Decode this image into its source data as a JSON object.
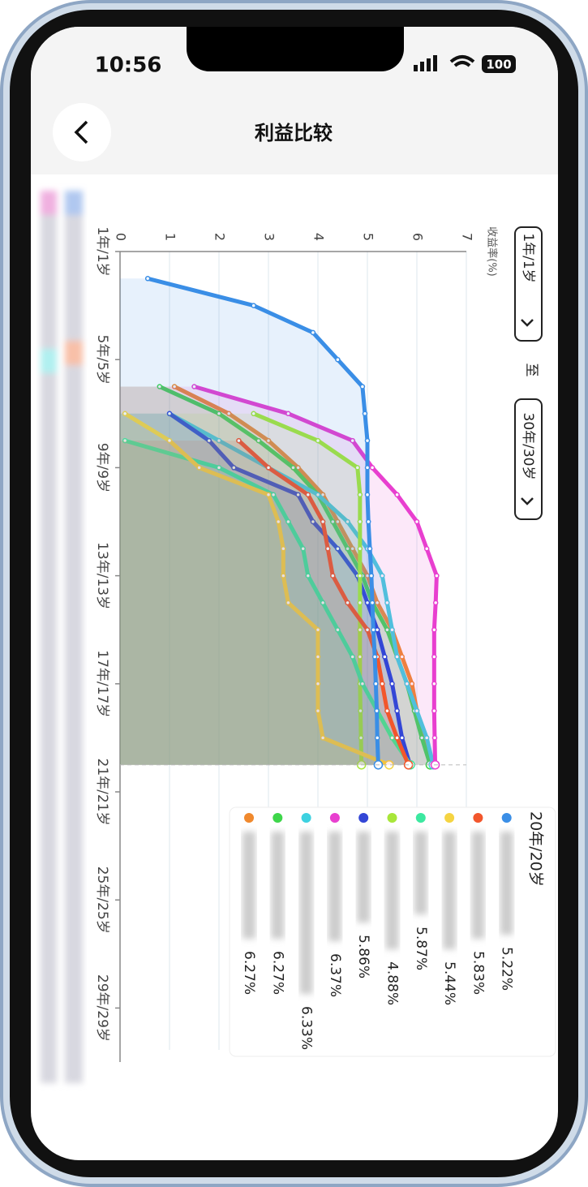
{
  "status_bar": {
    "time": "10:56",
    "battery": "100"
  },
  "header": {
    "title": "利益比较"
  },
  "range_selector": {
    "from": "1年/1岁",
    "separator": "至",
    "to": "30年/30岁"
  },
  "chart_data": {
    "type": "line",
    "orientation": "rotated",
    "y_label": "收益率(%)",
    "x": [
      1,
      2,
      3,
      4,
      5,
      6,
      7,
      8,
      9,
      10,
      11,
      12,
      13,
      14,
      15,
      16,
      17,
      18,
      19,
      20
    ],
    "xlim": [
      1,
      31
    ],
    "xticks": [
      {
        "value": 1,
        "label": "1年/1岁"
      },
      {
        "value": 5,
        "label": "5年/5岁"
      },
      {
        "value": 9,
        "label": "9年/9岁"
      },
      {
        "value": 13,
        "label": "13年/13岁"
      },
      {
        "value": 17,
        "label": "17年/17岁"
      },
      {
        "value": 21,
        "label": "21年/21岁"
      },
      {
        "value": 25,
        "label": "25年/25岁"
      },
      {
        "value": 29,
        "label": "29年/29岁"
      }
    ],
    "ylim": [
      0,
      7
    ],
    "yticks": [
      0,
      1,
      2,
      3,
      4,
      5,
      6,
      7
    ],
    "grid": true,
    "area": true,
    "series": [
      {
        "color": "#f0892d",
        "values": [
          null,
          null,
          null,
          null,
          null,
          1.1,
          2.2,
          3.0,
          3.6,
          4.1,
          4.4,
          4.7,
          5.0,
          5.2,
          5.5,
          5.7,
          5.9,
          6.0,
          6.15,
          6.27
        ]
      },
      {
        "color": "#3ed64a",
        "values": [
          null,
          null,
          null,
          null,
          null,
          0.8,
          2.0,
          2.8,
          3.5,
          4.0,
          4.3,
          4.6,
          4.9,
          5.1,
          5.4,
          5.6,
          5.8,
          5.95,
          6.1,
          6.27
        ]
      },
      {
        "color": "#3dd1e0",
        "values": [
          null,
          null,
          null,
          null,
          null,
          null,
          1.0,
          2.0,
          3.0,
          4.0,
          4.6,
          5.0,
          5.3,
          5.4,
          5.5,
          5.6,
          5.8,
          6.0,
          6.2,
          6.33
        ]
      },
      {
        "color": "#e83fcf",
        "values": [
          null,
          null,
          null,
          null,
          null,
          1.5,
          3.4,
          4.7,
          5.1,
          5.6,
          6.0,
          6.2,
          6.4,
          6.38,
          6.35,
          6.35,
          6.35,
          6.35,
          6.36,
          6.37
        ]
      },
      {
        "color": "#3346d6",
        "values": [
          null,
          null,
          null,
          null,
          null,
          null,
          1.0,
          1.8,
          2.3,
          3.6,
          3.9,
          4.4,
          4.8,
          5.0,
          5.2,
          5.35,
          5.5,
          5.6,
          5.7,
          5.86
        ]
      },
      {
        "color": "#a8e63a",
        "values": [
          null,
          null,
          null,
          null,
          null,
          null,
          2.7,
          4.0,
          4.8,
          4.85,
          4.85,
          4.85,
          4.85,
          4.85,
          4.85,
          4.85,
          4.85,
          4.86,
          4.87,
          4.88
        ]
      },
      {
        "color": "#3ce8a0",
        "values": [
          null,
          null,
          null,
          null,
          null,
          null,
          null,
          0.1,
          2.0,
          3.1,
          3.4,
          3.7,
          3.8,
          4.1,
          4.4,
          4.7,
          4.9,
          5.2,
          5.5,
          5.87
        ]
      },
      {
        "color": "#f5d442",
        "values": [
          null,
          null,
          null,
          null,
          null,
          null,
          0.1,
          1.0,
          1.6,
          3.0,
          3.2,
          3.3,
          3.3,
          3.4,
          4.0,
          4.0,
          4.0,
          4.0,
          4.1,
          5.44
        ]
      },
      {
        "color": "#f2562c",
        "values": [
          null,
          null,
          null,
          null,
          null,
          null,
          null,
          2.4,
          3.0,
          3.8,
          4.1,
          4.2,
          4.3,
          4.6,
          5.0,
          5.2,
          5.3,
          5.4,
          5.6,
          5.83
        ]
      },
      {
        "color": "#3a8ee6",
        "values": [
          null,
          0.56,
          2.7,
          3.9,
          4.4,
          4.9,
          4.95,
          5.0,
          5.0,
          5.0,
          5.02,
          5.05,
          5.08,
          5.1,
          5.12,
          5.15,
          5.17,
          5.19,
          5.2,
          5.22
        ]
      }
    ],
    "tooltip": {
      "title": "20年/20岁",
      "labels": [
        "6.27%",
        "6.27%",
        "6.33%",
        "6.37%",
        "5.86%",
        "4.88%",
        "5.87%",
        "5.44%",
        "5.83%",
        "5.22%"
      ]
    }
  }
}
